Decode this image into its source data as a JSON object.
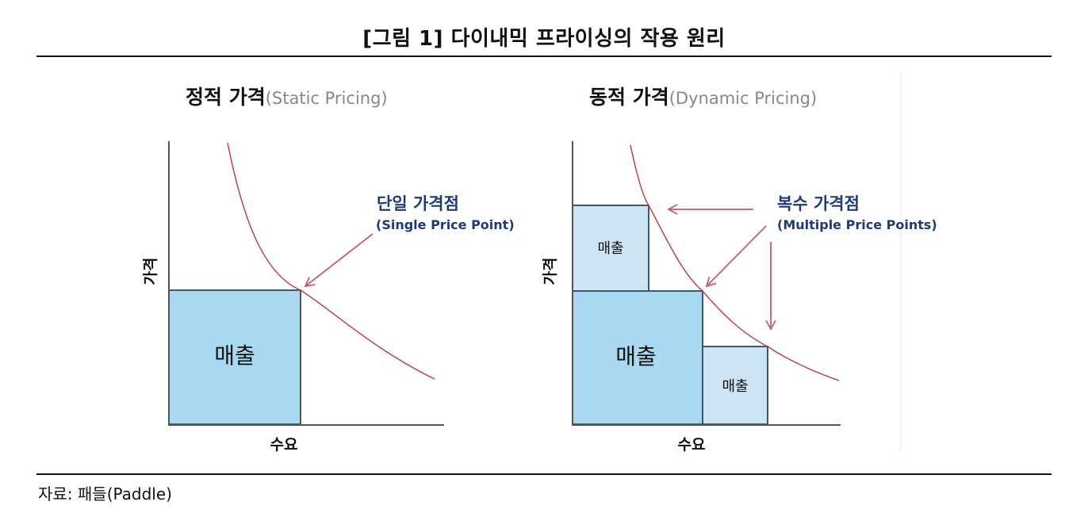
{
  "figure": {
    "title": "[그림 1] 다이내믹 프라이싱의 작용 원리",
    "source": "자료: 패들(Paddle)"
  },
  "colors": {
    "curve": "#c0404a",
    "arrow": "#c0606a",
    "revenue_main": "#a9d8f0",
    "revenue_sub": "#cce4f3",
    "box_stroke": "#3a5a6a",
    "axis": "#555555",
    "callout_text": "#1f3a75"
  },
  "static_panel": {
    "title_main": "정적 가격",
    "title_en": "(Static Pricing)",
    "y_label": "가격",
    "x_label": "수요",
    "revenue_label": "매출",
    "callout_ko": "단일 가격점",
    "callout_en": "(Single Price Point)"
  },
  "dynamic_panel": {
    "title_main": "동적 가격",
    "title_en": "(Dynamic Pricing)",
    "y_label": "가격",
    "x_label": "수요",
    "revenue_label_main": "매출",
    "revenue_label_upper": "매출",
    "revenue_label_lower": "매출",
    "callout_ko": "복수 가격점",
    "callout_en": "(Multiple Price Points)"
  }
}
